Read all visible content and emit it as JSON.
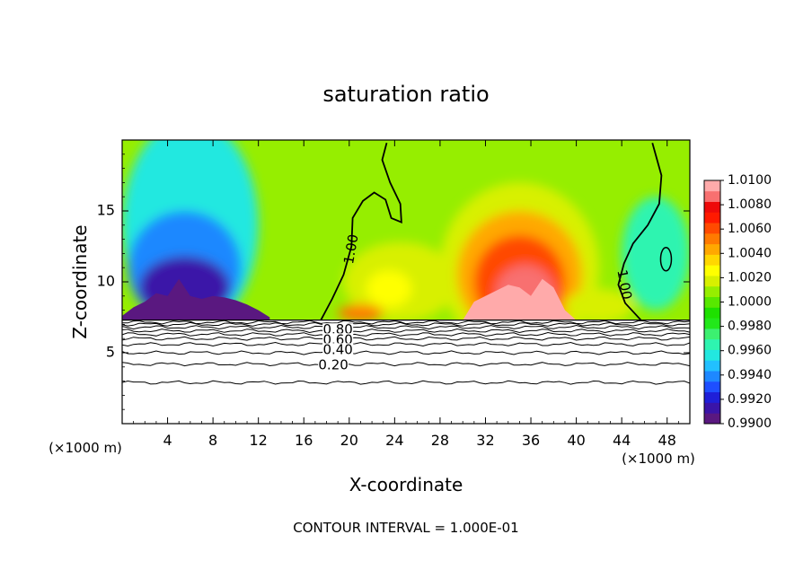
{
  "chart_data": {
    "type": "heatmap",
    "title": "saturation ratio",
    "xlabel": "X-coordinate",
    "ylabel": "Z-coordinate",
    "x_unit": "(×1000 m)",
    "y_unit": "(×1000 m)",
    "footer": "CONTOUR INTERVAL = 1.000E-01",
    "xlim": [
      0,
      50
    ],
    "ylim": [
      0,
      20
    ],
    "x_ticks": [
      4,
      8,
      12,
      16,
      20,
      24,
      28,
      32,
      36,
      40,
      44,
      48
    ],
    "y_ticks": [
      5,
      10,
      15
    ],
    "colorbar": {
      "min": 0.99,
      "max": 1.01,
      "tick_labels": [
        "1.0100",
        "1.0080",
        "1.0060",
        "1.0040",
        "1.0020",
        "1.0000",
        "0.9980",
        "0.9960",
        "0.9940",
        "0.9920",
        "0.9900"
      ],
      "colors": [
        "#5a1880",
        "#3a14a8",
        "#1f1fd8",
        "#1e4fff",
        "#1e88ff",
        "#22c0ff",
        "#22e8e0",
        "#2ef4b0",
        "#3cf070",
        "#22e81a",
        "#1ee000",
        "#58e800",
        "#96ee00",
        "#d8f000",
        "#ffff00",
        "#ffd700",
        "#ffa800",
        "#ff7a00",
        "#ff4a00",
        "#ff1a00",
        "#ee0a0a",
        "#f87070",
        "#ffaaaa"
      ]
    },
    "contour_labels": [
      "0.80",
      "0.60",
      "0.40",
      "0.20",
      "1.00",
      "1.00"
    ],
    "sub_level_lines_z": [
      2.9,
      4.2,
      5.0,
      5.6,
      6.0,
      6.3,
      6.55,
      6.8,
      7.0,
      7.15
    ],
    "surface_level_z": 7.3,
    "regions": [
      {
        "level": 0.9955,
        "cx": 6,
        "cz": 14,
        "rx": 6,
        "rz": 7.5
      },
      {
        "level": 0.9935,
        "cx": 5.5,
        "cz": 11,
        "rx": 5,
        "rz": 4
      },
      {
        "level": 0.9915,
        "cx": 5.5,
        "cz": 9.6,
        "rx": 4,
        "rz": 2.2
      },
      {
        "level": 0.9965,
        "cx": 47,
        "cz": 12,
        "rx": 3,
        "rz": 4
      },
      {
        "level": 1.0015,
        "cx": 24.5,
        "cz": 10,
        "rx": 5,
        "rz": 2.8
      },
      {
        "level": 1.003,
        "cx": 23.5,
        "cz": 9.5,
        "rx": 2,
        "rz": 1.3
      },
      {
        "level": 1.002,
        "cx": 35,
        "cz": 11,
        "rx": 7,
        "rz": 6
      },
      {
        "level": 1.004,
        "cx": 35,
        "cz": 10.5,
        "rx": 5.5,
        "rz": 4.5
      },
      {
        "level": 1.0065,
        "cx": 35,
        "cz": 10,
        "rx": 4,
        "rz": 3.3
      },
      {
        "level": 1.009,
        "cx": 35.5,
        "cz": 9.2,
        "rx": 2.6,
        "rz": 2
      },
      {
        "level": 1.002,
        "cx": 42,
        "cz": 8.3,
        "rx": 3,
        "rz": 1.2
      },
      {
        "level": 1.0055,
        "cx": 21,
        "cz": 7.8,
        "rx": 2,
        "rz": 0.6
      }
    ],
    "ridges": [
      {
        "level": 0.9905,
        "points": [
          [
            0,
            7.6
          ],
          [
            1,
            8.2
          ],
          [
            2,
            8.6
          ],
          [
            3,
            9.2
          ],
          [
            4,
            9.0
          ],
          [
            5,
            10.2
          ],
          [
            6,
            9.0
          ],
          [
            7,
            8.8
          ],
          [
            8,
            9.0
          ],
          [
            9,
            8.9
          ],
          [
            10,
            8.7
          ],
          [
            11,
            8.4
          ],
          [
            12,
            8.0
          ],
          [
            13,
            7.5
          ]
        ]
      },
      {
        "level": 1.01,
        "points": [
          [
            30,
            7.3
          ],
          [
            31,
            8.6
          ],
          [
            32,
            9.0
          ],
          [
            33,
            9.4
          ],
          [
            34,
            9.8
          ],
          [
            35,
            9.6
          ],
          [
            36,
            9.0
          ],
          [
            37,
            10.2
          ],
          [
            38,
            9.6
          ],
          [
            39,
            8.0
          ],
          [
            40,
            7.3
          ]
        ]
      }
    ],
    "contour_one": [
      {
        "points": [
          [
            17.5,
            7.3
          ],
          [
            18.5,
            8.8
          ],
          [
            19.5,
            10.5
          ],
          [
            20.2,
            12.5
          ],
          [
            20.3,
            14.5
          ],
          [
            21.2,
            15.7
          ],
          [
            22.2,
            16.3
          ],
          [
            23.2,
            15.8
          ],
          [
            23.7,
            14.5
          ],
          [
            24.6,
            14.2
          ],
          [
            24.5,
            15.5
          ],
          [
            23.6,
            17.0
          ],
          [
            22.9,
            18.6
          ],
          [
            23.3,
            19.8
          ]
        ]
      },
      {
        "points": [
          [
            45.7,
            7.3
          ],
          [
            44.3,
            8.5
          ],
          [
            43.7,
            9.8
          ],
          [
            44.2,
            11.3
          ],
          [
            45.0,
            12.7
          ],
          [
            46.3,
            14.0
          ],
          [
            47.3,
            15.5
          ],
          [
            47.5,
            17.5
          ],
          [
            46.7,
            19.8
          ]
        ]
      }
    ]
  }
}
